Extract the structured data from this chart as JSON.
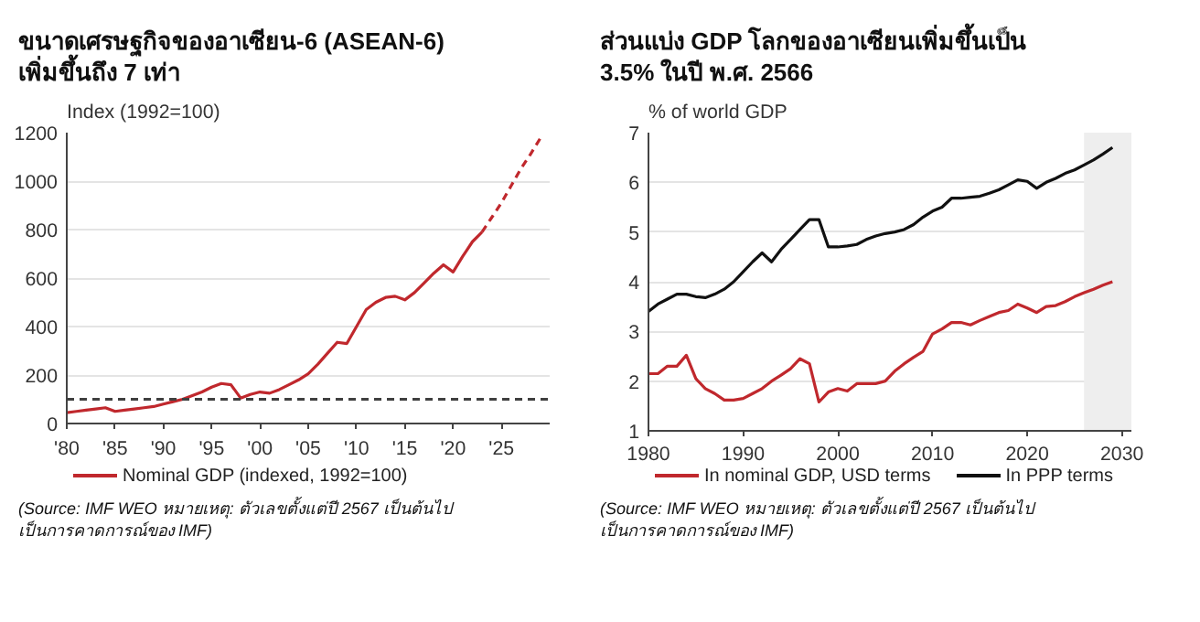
{
  "chart_data": [
    {
      "type": "line",
      "title": "ขนาดเศรษฐกิจของอาเซียน-6 (ASEAN-6)\nเพิ่มขึ้นถึง 7 เท่า",
      "ylabel": "Index (1992=100)",
      "annotations": [
        "(Source: IMF WEO หมายเหตุ: ตัวเลขตั้งแต่ปี 2567 เป็นต้นไป\nเป็นการคาดการณ์ของ IMF)"
      ],
      "xlim": [
        1980,
        2030
      ],
      "xticks": [
        {
          "value": 1980,
          "label": "'80"
        },
        {
          "value": 1985,
          "label": "'85"
        },
        {
          "value": 1990,
          "label": "'90"
        },
        {
          "value": 1995,
          "label": "'95"
        },
        {
          "value": 2000,
          "label": "'00"
        },
        {
          "value": 2005,
          "label": "'05"
        },
        {
          "value": 2010,
          "label": "'10"
        },
        {
          "value": 2015,
          "label": "'15"
        },
        {
          "value": 2020,
          "label": "'20"
        },
        {
          "value": 2025,
          "label": "'25"
        }
      ],
      "ylim": [
        0,
        1200
      ],
      "yticks": [
        0,
        200,
        400,
        600,
        800,
        1000,
        1200
      ],
      "grid": "y",
      "legend": "bottom",
      "ref_lines": [
        {
          "axis": "y",
          "value": 100,
          "color": "#404040",
          "line_style": "dashed"
        }
      ],
      "series": [
        {
          "name": "Nominal GDP (indexed, 1992=100)",
          "color": "#c0282d",
          "line_style": "solid",
          "x": [
            1980,
            1981,
            1982,
            1983,
            1984,
            1985,
            1986,
            1987,
            1988,
            1989,
            1990,
            1991,
            1992,
            1993,
            1994,
            1995,
            1996,
            1997,
            1998,
            1999,
            2000,
            2001,
            2002,
            2003,
            2004,
            2005,
            2006,
            2007,
            2008,
            2009,
            2010,
            2011,
            2012,
            2013,
            2014,
            2015,
            2016,
            2017,
            2018,
            2019,
            2020,
            2021,
            2022,
            2023
          ],
          "values": [
            45,
            50,
            55,
            60,
            65,
            50,
            55,
            60,
            65,
            70,
            80,
            90,
            100,
            115,
            130,
            150,
            165,
            160,
            105,
            120,
            130,
            125,
            140,
            160,
            180,
            205,
            245,
            290,
            335,
            330,
            400,
            470,
            500,
            520,
            525,
            510,
            540,
            580,
            620,
            655,
            625,
            690,
            750,
            790
          ]
        },
        {
          "color": "#c0282d",
          "line_style": "dashed",
          "x": [
            2023,
            2024,
            2025,
            2026,
            2027,
            2028,
            2029
          ],
          "values": [
            790,
            850,
            910,
            980,
            1050,
            1110,
            1175
          ]
        }
      ]
    },
    {
      "type": "line",
      "title": "ส่วนแบ่ง GDP โลกของอาเซียนเพิ่มขึ้นเป็น\n3.5% ในปี พ.ศ. 2566",
      "ylabel": "% of world GDP",
      "annotations": [
        "(Source: IMF WEO หมายเหตุ: ตัวเลขตั้งแต่ปี 2567 เป็นต้นไป\nเป็นการคาดการณ์ของ IMF)"
      ],
      "xlim": [
        1980,
        2031
      ],
      "xticks": [
        1980,
        1990,
        2000,
        2010,
        2020,
        2030
      ],
      "ylim": [
        1,
        7
      ],
      "yticks": [
        1,
        2,
        3,
        4,
        5,
        6,
        7
      ],
      "grid": "y",
      "legend": "bottom",
      "bands": [
        {
          "axis": "x",
          "from": 2026,
          "to": 2031,
          "color": "#eeeeee"
        }
      ],
      "series": [
        {
          "name": "In nominal GDP, USD terms",
          "color": "#c0282d",
          "x": [
            1980,
            1981,
            1982,
            1983,
            1984,
            1985,
            1986,
            1987,
            1988,
            1989,
            1990,
            1991,
            1992,
            1993,
            1994,
            1995,
            1996,
            1997,
            1998,
            1999,
            2000,
            2001,
            2002,
            2003,
            2004,
            2005,
            2006,
            2007,
            2008,
            2009,
            2010,
            2011,
            2012,
            2013,
            2014,
            2015,
            2016,
            2017,
            2018,
            2019,
            2020,
            2021,
            2022,
            2023,
            2024,
            2025,
            2026,
            2027,
            2028,
            2029
          ],
          "values": [
            2.15,
            2.15,
            2.3,
            2.3,
            2.52,
            2.05,
            1.85,
            1.75,
            1.62,
            1.62,
            1.65,
            1.75,
            1.85,
            2.0,
            2.12,
            2.25,
            2.45,
            2.35,
            1.58,
            1.78,
            1.85,
            1.8,
            1.95,
            1.95,
            1.95,
            2.0,
            2.2,
            2.35,
            2.48,
            2.6,
            2.95,
            3.05,
            3.18,
            3.18,
            3.13,
            3.22,
            3.3,
            3.38,
            3.42,
            3.55,
            3.47,
            3.38,
            3.5,
            3.52,
            3.6,
            3.7,
            3.78,
            3.85,
            3.93,
            4.0
          ]
        },
        {
          "name": "In PPP terms",
          "color": "#111111",
          "x": [
            1980,
            1981,
            1982,
            1983,
            1984,
            1985,
            1986,
            1987,
            1988,
            1989,
            1990,
            1991,
            1992,
            1993,
            1994,
            1995,
            1996,
            1997,
            1998,
            1999,
            2000,
            2001,
            2002,
            2003,
            2004,
            2005,
            2006,
            2007,
            2008,
            2009,
            2010,
            2011,
            2012,
            2013,
            2014,
            2015,
            2016,
            2017,
            2018,
            2019,
            2020,
            2021,
            2022,
            2023,
            2024,
            2025,
            2026,
            2027,
            2028,
            2029
          ],
          "values": [
            3.4,
            3.55,
            3.65,
            3.75,
            3.75,
            3.7,
            3.68,
            3.75,
            3.85,
            4.0,
            4.2,
            4.4,
            4.58,
            4.4,
            4.65,
            4.85,
            5.05,
            5.25,
            5.25,
            4.7,
            4.7,
            4.72,
            4.75,
            4.85,
            4.92,
            4.97,
            5.0,
            5.05,
            5.15,
            5.3,
            5.42,
            5.5,
            5.68,
            5.68,
            5.7,
            5.72,
            5.78,
            5.85,
            5.95,
            6.05,
            6.02,
            5.88,
            6.0,
            6.08,
            6.18,
            6.25,
            6.35,
            6.45,
            6.57,
            6.7
          ]
        }
      ]
    }
  ]
}
